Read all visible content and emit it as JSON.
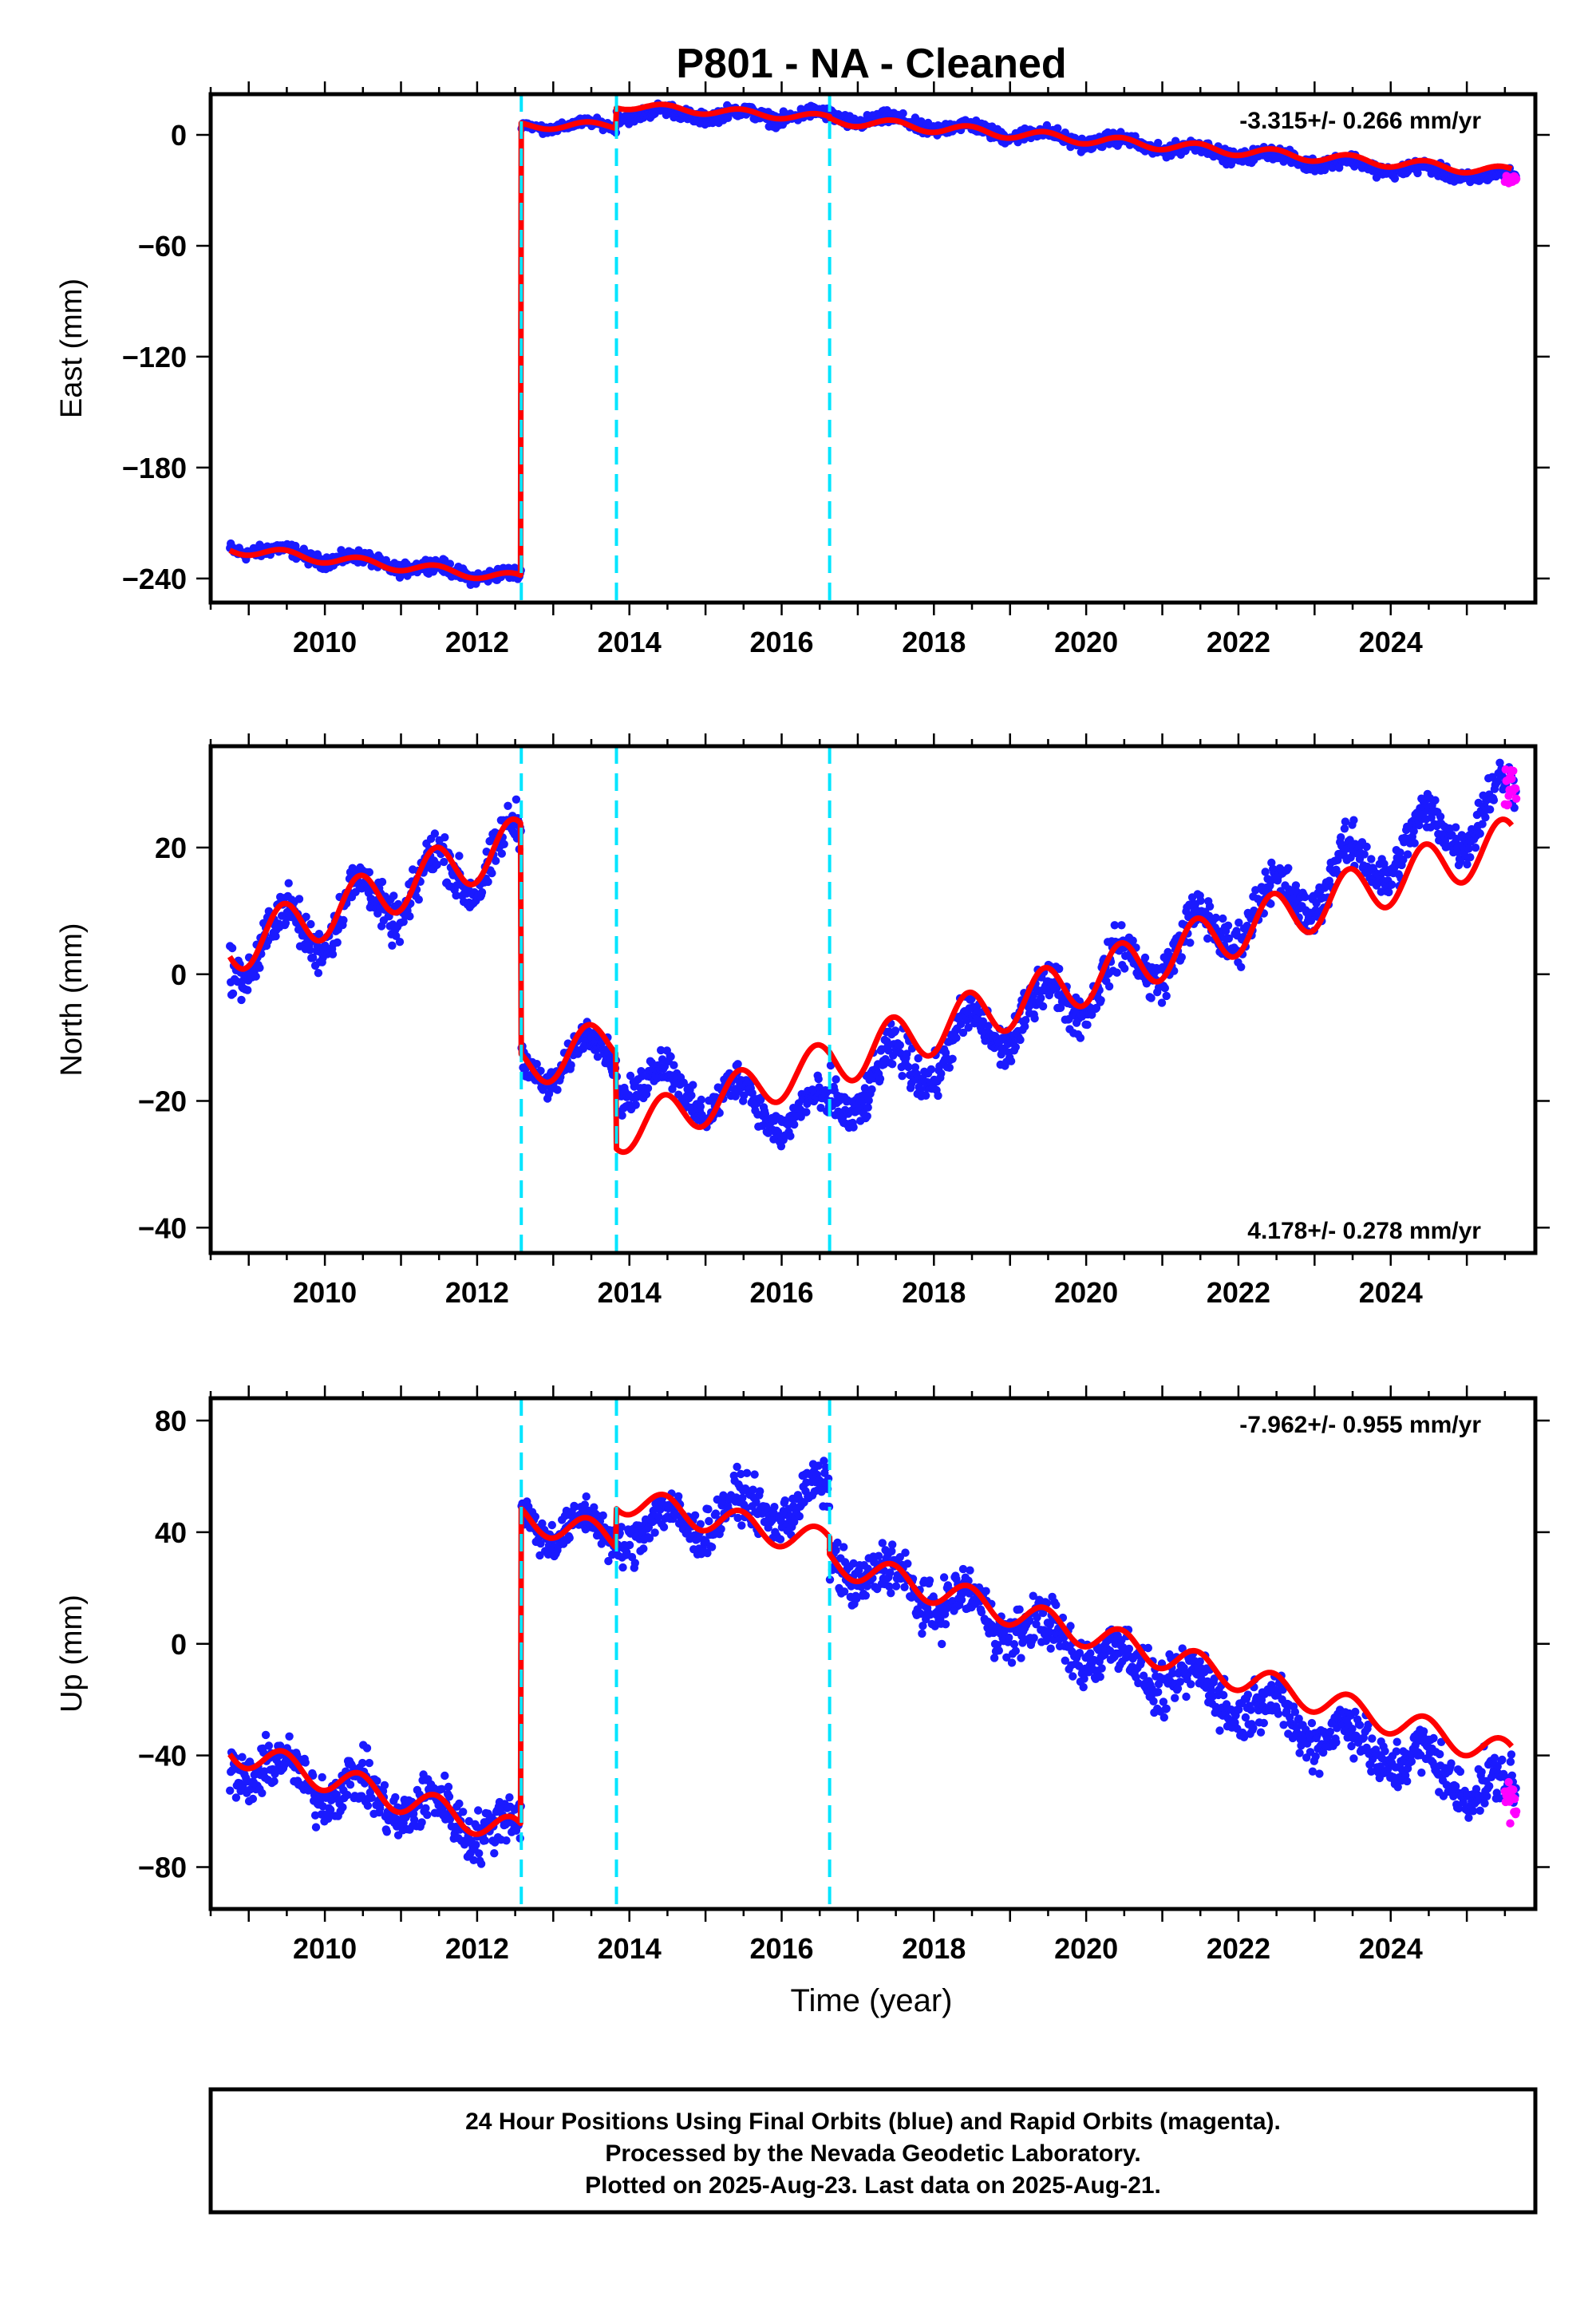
{
  "figure": {
    "title": "P801  - NA - Cleaned",
    "xlabel": "Time (year)",
    "footer_lines": [
      "24 Hour Positions Using Final Orbits (blue) and Rapid Orbits (magenta).",
      "Processed by the Nevada Geodetic Laboratory.",
      "Plotted on 2025-Aug-23. Last data on 2025-Aug-21."
    ],
    "colors": {
      "final": "#1a1aff",
      "rapid": "#ff00ff",
      "model": "#ff0000",
      "event": "#00e5ff"
    }
  },
  "chart_data": [
    {
      "type": "scatter",
      "panel": "east",
      "ylabel": "East (mm)",
      "rate_text": "-3.315+/- 0.266 mm/yr",
      "rate_placement": "top-right",
      "xlim": [
        2008.5,
        2025.9
      ],
      "ylim": [
        -253,
        22
      ],
      "xticks": [
        2010,
        2012,
        2014,
        2016,
        2018,
        2020,
        2022,
        2024
      ],
      "yticks": [
        0,
        -60,
        -120,
        -180,
        -240
      ],
      "event_lines": [
        2012.58,
        2013.83,
        2016.63
      ],
      "segments": [
        {
          "t0": 2008.75,
          "t1": 2012.58,
          "y0": -223,
          "y1": -240,
          "amp": 2.5,
          "noise": 3
        },
        {
          "t0": 2012.58,
          "t1": 2013.83,
          "y0": 5,
          "y1": 5,
          "amp": 2,
          "noise": 2
        },
        {
          "t0": 2013.83,
          "t1": 2016.63,
          "y0": 12,
          "y1": 10,
          "amp": 2.5,
          "noise": 3
        },
        {
          "t0": 2016.63,
          "t1": 2025.65,
          "y0": 10,
          "y1": -24,
          "amp": 2.5,
          "noise": 3
        }
      ],
      "model_segments": [
        {
          "t0": 2008.75,
          "t1": 2012.58,
          "y0": -224,
          "y1": -240,
          "amp": 2.5
        },
        {
          "t0": 2012.58,
          "t1": 2013.83,
          "y0": 5,
          "y1": 5,
          "amp": 2
        },
        {
          "t0": 2013.83,
          "t1": 2016.63,
          "y0": 16,
          "y1": 9,
          "amp": 2
        },
        {
          "t0": 2016.63,
          "t1": 2025.6,
          "y0": 8,
          "y1": -20,
          "amp": 2.5
        }
      ],
      "rapid_span": [
        2025.5,
        2025.65,
        -24,
        2
      ]
    },
    {
      "type": "scatter",
      "panel": "north",
      "ylabel": "North (mm)",
      "rate_text": "4.178+/- 0.278 mm/yr",
      "rate_placement": "bottom-right",
      "xlim": [
        2008.5,
        2025.9
      ],
      "ylim": [
        -44,
        36
      ],
      "xticks": [
        2010,
        2012,
        2014,
        2016,
        2018,
        2020,
        2022,
        2024
      ],
      "yticks": [
        20,
        0,
        -20,
        -40
      ],
      "event_lines": [
        2012.58,
        2013.83,
        2016.63
      ],
      "segments": [
        {
          "t0": 2008.75,
          "t1": 2012.58,
          "y0": 3,
          "y1": 20,
          "amp": 4.5,
          "noise": 3
        },
        {
          "t0": 2012.58,
          "t1": 2013.83,
          "y0": -15,
          "y1": -12,
          "amp": 3.5,
          "noise": 2
        },
        {
          "t0": 2013.83,
          "t1": 2016.63,
          "y0": -16,
          "y1": -23,
          "amp": 3.5,
          "noise": 2.5
        },
        {
          "t0": 2016.63,
          "t1": 2025.65,
          "y0": -20,
          "y1": 28,
          "amp": 4,
          "noise": 3
        }
      ],
      "model_segments": [
        {
          "t0": 2008.75,
          "t1": 2012.58,
          "y0": 4,
          "y1": 21,
          "amp": 4
        },
        {
          "t0": 2012.58,
          "t1": 2013.83,
          "y0": -15,
          "y1": -10,
          "amp": 3.5
        },
        {
          "t0": 2013.83,
          "t1": 2016.63,
          "y0": -25,
          "y1": -14,
          "amp": 3.5
        },
        {
          "t0": 2016.63,
          "t1": 2025.6,
          "y0": -14,
          "y1": 21,
          "amp": 4
        }
      ],
      "rapid_span": [
        2025.5,
        2025.65,
        30,
        3
      ]
    },
    {
      "type": "scatter",
      "panel": "up",
      "ylabel": "Up (mm)",
      "rate_text": "-7.962+/- 0.955 mm/yr",
      "rate_placement": "top-right",
      "xlim": [
        2008.5,
        2025.9
      ],
      "ylim": [
        -95,
        88
      ],
      "xticks": [
        2010,
        2012,
        2014,
        2016,
        2018,
        2020,
        2022,
        2024
      ],
      "yticks": [
        80,
        40,
        0,
        -40,
        -80
      ],
      "event_lines": [
        2012.58,
        2013.83,
        2016.63
      ],
      "segments": [
        {
          "t0": 2008.75,
          "t1": 2012.58,
          "y0": -42,
          "y1": -68,
          "amp": 6,
          "noise": 8
        },
        {
          "t0": 2012.58,
          "t1": 2013.83,
          "y0": 45,
          "y1": 38,
          "amp": 6,
          "noise": 6
        },
        {
          "t0": 2013.83,
          "t1": 2016.63,
          "y0": 40,
          "y1": 52,
          "amp": 6,
          "noise": 7
        },
        {
          "t0": 2016.63,
          "t1": 2025.65,
          "y0": 30,
          "y1": -55,
          "amp": 6,
          "noise": 8
        }
      ],
      "model_segments": [
        {
          "t0": 2008.75,
          "t1": 2012.58,
          "y0": -38,
          "y1": -68,
          "amp": 5
        },
        {
          "t0": 2012.58,
          "t1": 2013.83,
          "y0": 45,
          "y1": 38,
          "amp": 5
        },
        {
          "t0": 2013.83,
          "t1": 2016.63,
          "y0": 52,
          "y1": 36,
          "amp": 5
        },
        {
          "t0": 2016.63,
          "t1": 2025.6,
          "y0": 30,
          "y1": -40,
          "amp": 5
        }
      ],
      "rapid_span": [
        2025.5,
        2025.65,
        -55,
        8
      ]
    }
  ]
}
